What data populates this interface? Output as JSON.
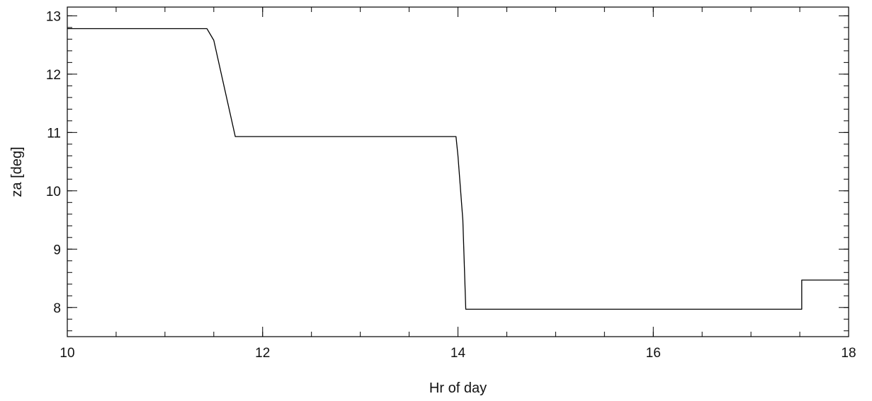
{
  "chart_data": {
    "type": "line",
    "xlabel": "Hr of day",
    "ylabel": "za [deg]",
    "xlim": [
      10,
      18
    ],
    "ylim": [
      7.5,
      13.15
    ],
    "x_ticks": [
      10,
      12,
      14,
      16,
      18
    ],
    "x_tick_labels": [
      "10",
      "12",
      "14",
      "16",
      "18"
    ],
    "x_minor_step": 0.5,
    "y_ticks": [
      8,
      9,
      10,
      11,
      12,
      13
    ],
    "y_tick_labels": [
      "8",
      "9",
      "10",
      "11",
      "12",
      "13"
    ],
    "y_minor_step": 0.2,
    "grid": false,
    "series": [
      {
        "color": "#000000",
        "x": [
          10.0,
          11.43,
          11.5,
          11.72,
          13.98,
          14.0,
          14.05,
          14.08,
          17.52,
          17.52,
          18.0
        ],
        "y": [
          12.78,
          12.78,
          12.58,
          10.93,
          10.93,
          10.6,
          9.5,
          7.97,
          7.97,
          8.47,
          8.47
        ]
      }
    ]
  }
}
